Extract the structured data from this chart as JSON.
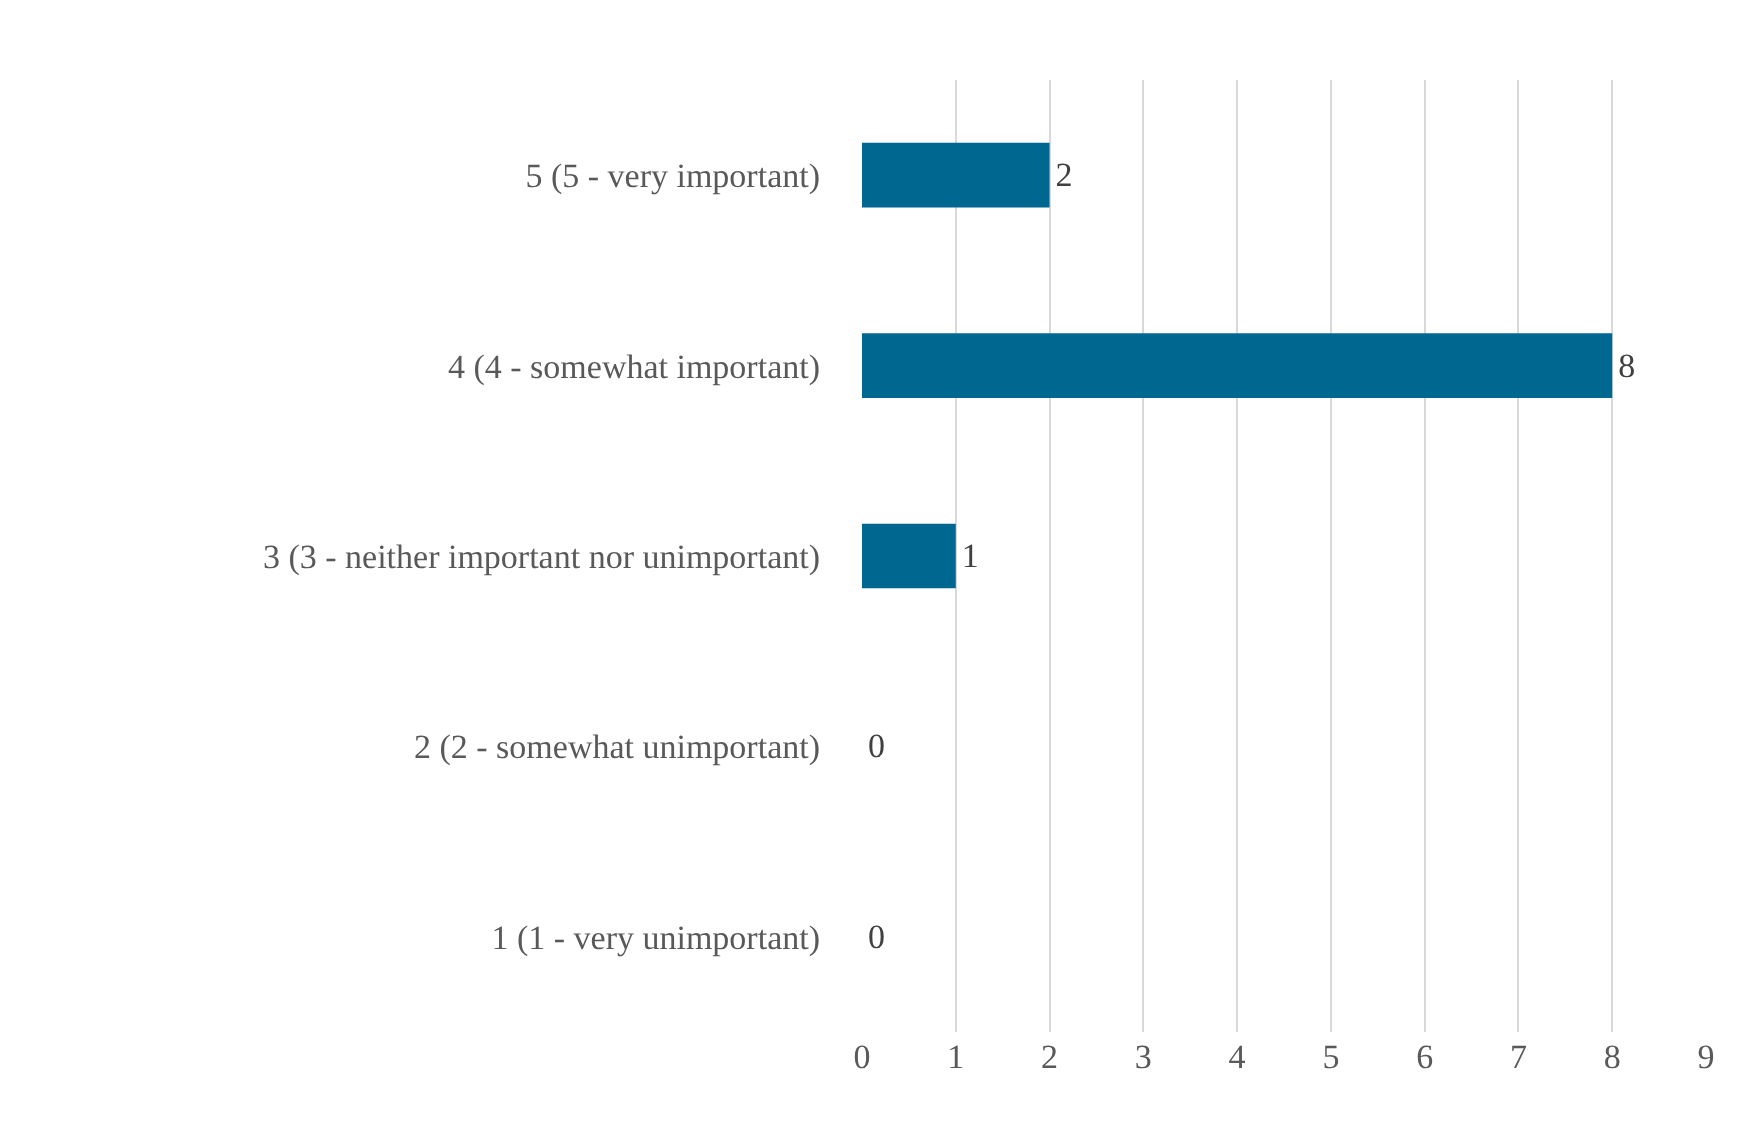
{
  "chart_data": {
    "type": "bar",
    "orientation": "horizontal",
    "categories": [
      "5 (5 - very important)",
      "4 (4 - somewhat important)",
      "3 (3 - neither important nor unimportant)",
      "2 (2 - somewhat unimportant)",
      "1 (1 - very unimportant)"
    ],
    "values": [
      2,
      8,
      1,
      0,
      0
    ],
    "color": "#006890",
    "xlim": [
      0,
      9
    ],
    "xticks": [
      0,
      1,
      2,
      3,
      4,
      5,
      6,
      7,
      8,
      9
    ],
    "grid": "x",
    "data_labels": true,
    "legend": false
  }
}
